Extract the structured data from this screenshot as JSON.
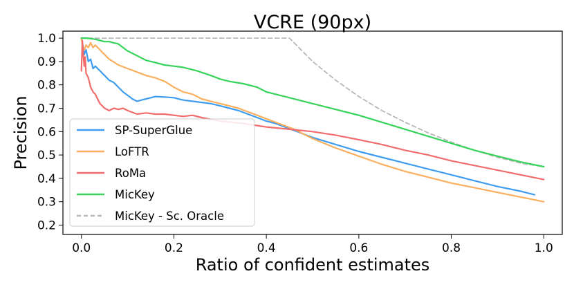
{
  "chart_data": {
    "type": "line",
    "title": "VCRE (90px)",
    "xlabel": "Ratio of confident estimates",
    "ylabel": "Precision",
    "xlim": [
      -0.04,
      1.04
    ],
    "ylim": [
      0.16,
      1.03
    ],
    "xticks": [
      0.0,
      0.2,
      0.4,
      0.6,
      0.8,
      1.0
    ],
    "xtick_labels": [
      "0.0",
      "0.2",
      "0.4",
      "0.6",
      "0.8",
      "1.0"
    ],
    "yticks": [
      0.2,
      0.3,
      0.4,
      0.5,
      0.6,
      0.7,
      0.8,
      0.9,
      1.0
    ],
    "ytick_labels": [
      "0.2",
      "0.3",
      "0.4",
      "0.5",
      "0.6",
      "0.7",
      "0.8",
      "0.9",
      "1.0"
    ],
    "grid": false,
    "legend_position": "lower-left",
    "series": [
      {
        "name": "SP-SuperGlue",
        "color": "#3d9bf0",
        "dash": "solid",
        "x": [
          0.0,
          0.003,
          0.006,
          0.01,
          0.015,
          0.02,
          0.025,
          0.03,
          0.04,
          0.05,
          0.06,
          0.07,
          0.08,
          0.09,
          0.1,
          0.11,
          0.12,
          0.13,
          0.14,
          0.15,
          0.16,
          0.18,
          0.2,
          0.22,
          0.24,
          0.26,
          0.28,
          0.3,
          0.32,
          0.34,
          0.36,
          0.38,
          0.4,
          0.42,
          0.44,
          0.46,
          0.5,
          0.55,
          0.6,
          0.65,
          0.7,
          0.75,
          0.8,
          0.85,
          0.9,
          0.95,
          0.98
        ],
        "y": [
          1.0,
          0.97,
          0.93,
          0.95,
          0.9,
          0.91,
          0.87,
          0.88,
          0.86,
          0.84,
          0.82,
          0.81,
          0.79,
          0.77,
          0.755,
          0.74,
          0.73,
          0.735,
          0.74,
          0.745,
          0.75,
          0.748,
          0.745,
          0.735,
          0.73,
          0.725,
          0.72,
          0.71,
          0.7,
          0.69,
          0.675,
          0.66,
          0.645,
          0.635,
          0.62,
          0.605,
          0.575,
          0.545,
          0.515,
          0.49,
          0.465,
          0.44,
          0.415,
          0.39,
          0.365,
          0.345,
          0.33
        ]
      },
      {
        "name": "LoFTR",
        "color": "#fbae5c",
        "dash": "solid",
        "x": [
          0.0,
          0.003,
          0.006,
          0.01,
          0.015,
          0.02,
          0.025,
          0.03,
          0.04,
          0.05,
          0.06,
          0.08,
          0.1,
          0.12,
          0.14,
          0.16,
          0.18,
          0.2,
          0.22,
          0.24,
          0.26,
          0.28,
          0.3,
          0.32,
          0.34,
          0.36,
          0.38,
          0.4,
          0.42,
          0.44,
          0.46,
          0.5,
          0.55,
          0.6,
          0.65,
          0.7,
          0.75,
          0.8,
          0.85,
          0.9,
          0.95,
          1.0
        ],
        "y": [
          1.0,
          0.96,
          0.95,
          0.97,
          0.96,
          0.98,
          0.96,
          0.97,
          0.95,
          0.93,
          0.91,
          0.885,
          0.87,
          0.855,
          0.84,
          0.83,
          0.815,
          0.79,
          0.77,
          0.76,
          0.74,
          0.73,
          0.72,
          0.71,
          0.7,
          0.685,
          0.67,
          0.655,
          0.64,
          0.625,
          0.61,
          0.57,
          0.53,
          0.495,
          0.46,
          0.43,
          0.405,
          0.38,
          0.36,
          0.34,
          0.32,
          0.3
        ]
      },
      {
        "name": "RoMa",
        "color": "#f26b6b",
        "dash": "solid",
        "x": [
          0.0,
          0.002,
          0.004,
          0.006,
          0.008,
          0.01,
          0.015,
          0.02,
          0.025,
          0.03,
          0.035,
          0.04,
          0.05,
          0.06,
          0.07,
          0.08,
          0.09,
          0.1,
          0.12,
          0.14,
          0.16,
          0.18,
          0.2,
          0.22,
          0.24,
          0.26,
          0.3,
          0.35,
          0.4,
          0.45,
          0.5,
          0.55,
          0.6,
          0.65,
          0.7,
          0.75,
          0.8,
          0.85,
          0.9,
          0.95,
          1.0
        ],
        "y": [
          0.86,
          0.99,
          0.93,
          0.88,
          0.92,
          0.85,
          0.83,
          0.79,
          0.77,
          0.76,
          0.74,
          0.72,
          0.7,
          0.69,
          0.7,
          0.695,
          0.7,
          0.69,
          0.675,
          0.68,
          0.675,
          0.675,
          0.67,
          0.665,
          0.67,
          0.66,
          0.645,
          0.635,
          0.62,
          0.61,
          0.6,
          0.585,
          0.565,
          0.545,
          0.52,
          0.5,
          0.475,
          0.455,
          0.435,
          0.415,
          0.395
        ]
      },
      {
        "name": "MicKey",
        "color": "#35d35a",
        "dash": "solid",
        "x": [
          0.0,
          0.01,
          0.02,
          0.03,
          0.04,
          0.05,
          0.06,
          0.07,
          0.08,
          0.09,
          0.1,
          0.12,
          0.14,
          0.16,
          0.18,
          0.2,
          0.22,
          0.25,
          0.28,
          0.3,
          0.32,
          0.35,
          0.38,
          0.4,
          0.45,
          0.5,
          0.55,
          0.6,
          0.65,
          0.7,
          0.75,
          0.8,
          0.85,
          0.9,
          0.95,
          1.0
        ],
        "y": [
          1.0,
          1.0,
          0.998,
          0.995,
          0.99,
          0.985,
          0.985,
          0.98,
          0.975,
          0.96,
          0.945,
          0.925,
          0.905,
          0.895,
          0.885,
          0.88,
          0.875,
          0.86,
          0.84,
          0.825,
          0.815,
          0.805,
          0.79,
          0.77,
          0.745,
          0.72,
          0.695,
          0.67,
          0.64,
          0.61,
          0.58,
          0.55,
          0.52,
          0.495,
          0.47,
          0.45
        ]
      },
      {
        "name": "MicKey - Sc. Oracle",
        "color": "#b8b8b8",
        "dash": "dashed",
        "x": [
          0.0,
          0.1,
          0.2,
          0.3,
          0.4,
          0.45,
          0.5,
          0.55,
          0.6,
          0.65,
          0.7,
          0.75,
          0.8,
          0.85,
          0.9,
          0.95,
          1.0
        ],
        "y": [
          1.0,
          1.0,
          1.0,
          1.0,
          1.0,
          1.0,
          0.9,
          0.82,
          0.75,
          0.69,
          0.64,
          0.595,
          0.555,
          0.52,
          0.49,
          0.465,
          0.45
        ]
      }
    ]
  }
}
